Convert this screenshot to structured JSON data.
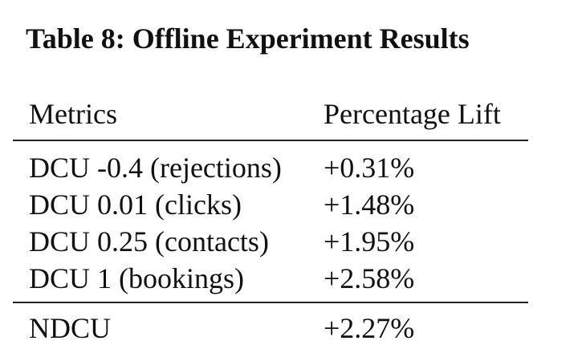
{
  "caption": "Table 8: Offline Experiment Results",
  "table": {
    "headers": {
      "metrics": "Metrics",
      "lift": "Percentage Lift"
    },
    "rows": [
      {
        "metric": "DCU -0.4 (rejections)",
        "lift": "+0.31%"
      },
      {
        "metric": "DCU 0.01 (clicks)",
        "lift": "+1.48%"
      },
      {
        "metric": "DCU 0.25 (contacts)",
        "lift": "+1.95%"
      },
      {
        "metric": "DCU 1 (bookings)",
        "lift": "+2.58%"
      }
    ],
    "total": {
      "metric": "NDCU",
      "lift": "+2.27%"
    }
  }
}
